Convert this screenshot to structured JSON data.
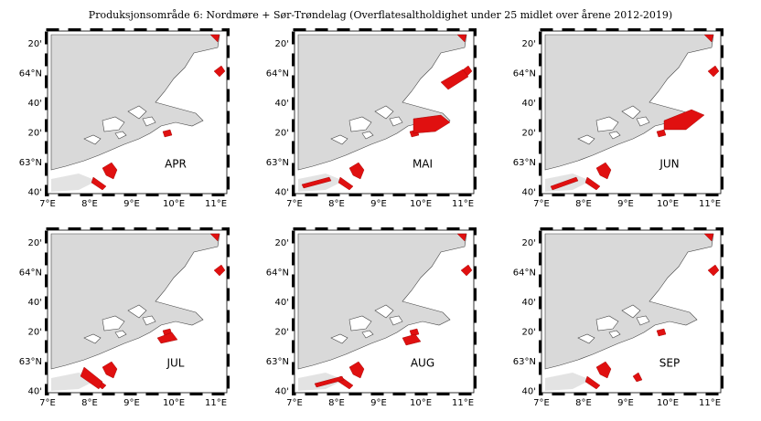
{
  "title": "Produksjonsområde 6: Nordmøre + Sør-Trøndelag (Overflatesaltholdighet under 25 midlet over årene 2012-2019)",
  "panels": [
    {
      "label": "APR"
    },
    {
      "label": "MAI"
    },
    {
      "label": "JUN"
    },
    {
      "label": "JUL"
    },
    {
      "label": "AUG"
    },
    {
      "label": "SEP"
    }
  ],
  "lat_ticks": [
    "20'",
    "64°N",
    "40'",
    "20'",
    "63°N",
    "40'"
  ],
  "lon_ticks": [
    "7°E",
    "8°E",
    "9°E",
    "10°E",
    "11°E"
  ]
}
